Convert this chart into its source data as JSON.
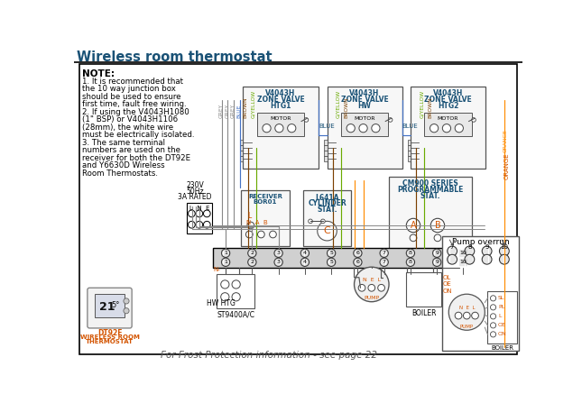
{
  "title": "Wireless room thermostat",
  "title_color": "#1a5276",
  "bg_color": "#ffffff",
  "note_title": "NOTE:",
  "note_lines": [
    "1. It is recommended that",
    "the 10 way junction box",
    "should be used to ensure",
    "first time, fault free wiring.",
    "2. If using the V4043H1080",
    "(1\" BSP) or V4043H1106",
    "(28mm), the white wire",
    "must be electrically isolated.",
    "3. The same terminal",
    "numbers are used on the",
    "receiver for both the DT92E",
    "and Y6630D Wireless",
    "Room Thermostats."
  ],
  "footer_text": "For Frost Protection information - see page 22",
  "wire_colors": {
    "grey": "#888888",
    "blue": "#4472c4",
    "brown": "#7b3f00",
    "orange": "#ff8c00",
    "green_yellow": "#6aaa00",
    "black": "#000000",
    "dark": "#333333"
  },
  "text_color_blue": "#1a5276",
  "text_color_orange": "#d35400"
}
